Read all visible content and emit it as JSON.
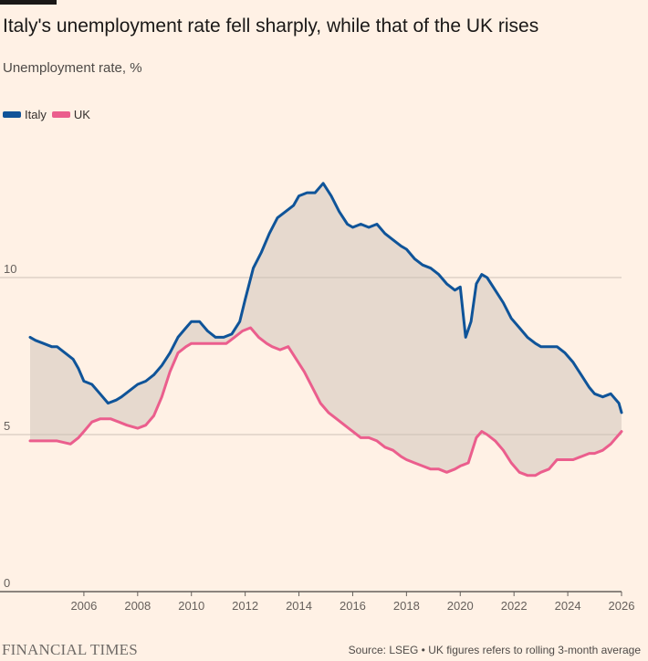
{
  "title": "Italy's unemployment rate fell sharply, while that of the UK rises",
  "subtitle": "Unemployment rate, %",
  "source": "Source: LSEG • UK figures refers to rolling 3-month average",
  "brand": "FINANCIAL TIMES",
  "colors": {
    "italy": "#0f5499",
    "uk": "#eb5e8d",
    "fill": "#e6d9ce",
    "grid": "#ccc1b7",
    "background": "#fff1e5"
  },
  "chart_data": {
    "type": "line",
    "title": "Italy's unemployment rate fell sharply, while that of the UK rises",
    "subtitle": "Unemployment rate, %",
    "xlabel": "",
    "ylabel": "Unemployment rate, %",
    "xlim": [
      2004.0,
      2026.0
    ],
    "ylim": [
      0,
      13.5
    ],
    "yticks": [
      0,
      5,
      10
    ],
    "xticks": [
      2006,
      2008,
      2010,
      2012,
      2014,
      2016,
      2018,
      2020,
      2022,
      2024,
      2026
    ],
    "legend": "top-left",
    "grid": "horizontal",
    "shaded_area_between_series": true,
    "series": [
      {
        "name": "Italy",
        "x": [
          2004.0,
          2004.2,
          2004.5,
          2004.8,
          2005.0,
          2005.3,
          2005.6,
          2005.8,
          2006.0,
          2006.3,
          2006.6,
          2006.9,
          2007.2,
          2007.4,
          2007.7,
          2008.0,
          2008.3,
          2008.6,
          2008.9,
          2009.2,
          2009.5,
          2009.8,
          2010.0,
          2010.3,
          2010.6,
          2010.9,
          2011.2,
          2011.5,
          2011.8,
          2012.0,
          2012.3,
          2012.6,
          2012.9,
          2013.2,
          2013.5,
          2013.8,
          2014.0,
          2014.3,
          2014.6,
          2014.9,
          2015.2,
          2015.5,
          2015.8,
          2016.0,
          2016.3,
          2016.6,
          2016.9,
          2017.2,
          2017.5,
          2017.8,
          2018.0,
          2018.3,
          2018.6,
          2018.9,
          2019.2,
          2019.5,
          2019.8,
          2020.0,
          2020.2,
          2020.4,
          2020.6,
          2020.8,
          2021.0,
          2021.3,
          2021.6,
          2021.9,
          2022.2,
          2022.5,
          2022.8,
          2023.0,
          2023.3,
          2023.6,
          2023.9,
          2024.2,
          2024.5,
          2024.8,
          2025.0,
          2025.3,
          2025.6,
          2025.9,
          2026.0
        ],
        "values": [
          8.1,
          8.0,
          7.9,
          7.8,
          7.8,
          7.6,
          7.4,
          7.1,
          6.7,
          6.6,
          6.3,
          6.0,
          6.1,
          6.2,
          6.4,
          6.6,
          6.7,
          6.9,
          7.2,
          7.6,
          8.1,
          8.4,
          8.6,
          8.6,
          8.3,
          8.1,
          8.1,
          8.2,
          8.6,
          9.3,
          10.3,
          10.8,
          11.4,
          11.9,
          12.1,
          12.3,
          12.6,
          12.7,
          12.7,
          13.0,
          12.6,
          12.1,
          11.7,
          11.6,
          11.7,
          11.6,
          11.7,
          11.4,
          11.2,
          11.0,
          10.9,
          10.6,
          10.4,
          10.3,
          10.1,
          9.8,
          9.6,
          9.7,
          8.1,
          8.6,
          9.8,
          10.1,
          10.0,
          9.6,
          9.2,
          8.7,
          8.4,
          8.1,
          7.9,
          7.8,
          7.8,
          7.8,
          7.6,
          7.3,
          6.9,
          6.5,
          6.3,
          6.2,
          6.3,
          6.0,
          5.7
        ]
      },
      {
        "name": "UK",
        "x": [
          2004.0,
          2004.5,
          2005.0,
          2005.5,
          2005.8,
          2006.0,
          2006.3,
          2006.6,
          2007.0,
          2007.3,
          2007.6,
          2008.0,
          2008.3,
          2008.6,
          2008.9,
          2009.2,
          2009.5,
          2009.8,
          2010.0,
          2010.3,
          2010.6,
          2011.0,
          2011.3,
          2011.6,
          2011.9,
          2012.2,
          2012.5,
          2012.8,
          2013.0,
          2013.3,
          2013.6,
          2013.9,
          2014.2,
          2014.5,
          2014.8,
          2015.1,
          2015.4,
          2015.7,
          2016.0,
          2016.3,
          2016.6,
          2016.9,
          2017.2,
          2017.5,
          2017.8,
          2018.0,
          2018.3,
          2018.6,
          2018.9,
          2019.2,
          2019.5,
          2019.8,
          2020.0,
          2020.3,
          2020.6,
          2020.8,
          2021.0,
          2021.3,
          2021.6,
          2021.9,
          2022.2,
          2022.5,
          2022.8,
          2023.0,
          2023.3,
          2023.6,
          2023.9,
          2024.2,
          2024.5,
          2024.8,
          2025.0,
          2025.3,
          2025.6,
          2025.9,
          2026.0
        ],
        "values": [
          4.8,
          4.8,
          4.8,
          4.7,
          4.9,
          5.1,
          5.4,
          5.5,
          5.5,
          5.4,
          5.3,
          5.2,
          5.3,
          5.6,
          6.2,
          7.0,
          7.6,
          7.8,
          7.9,
          7.9,
          7.9,
          7.9,
          7.9,
          8.1,
          8.3,
          8.4,
          8.1,
          7.9,
          7.8,
          7.7,
          7.8,
          7.4,
          7.0,
          6.5,
          6.0,
          5.7,
          5.5,
          5.3,
          5.1,
          4.9,
          4.9,
          4.8,
          4.6,
          4.5,
          4.3,
          4.2,
          4.1,
          4.0,
          3.9,
          3.9,
          3.8,
          3.9,
          4.0,
          4.1,
          4.9,
          5.1,
          5.0,
          4.8,
          4.5,
          4.1,
          3.8,
          3.7,
          3.7,
          3.8,
          3.9,
          4.2,
          4.2,
          4.2,
          4.3,
          4.4,
          4.4,
          4.5,
          4.7,
          5.0,
          5.1
        ]
      }
    ]
  }
}
